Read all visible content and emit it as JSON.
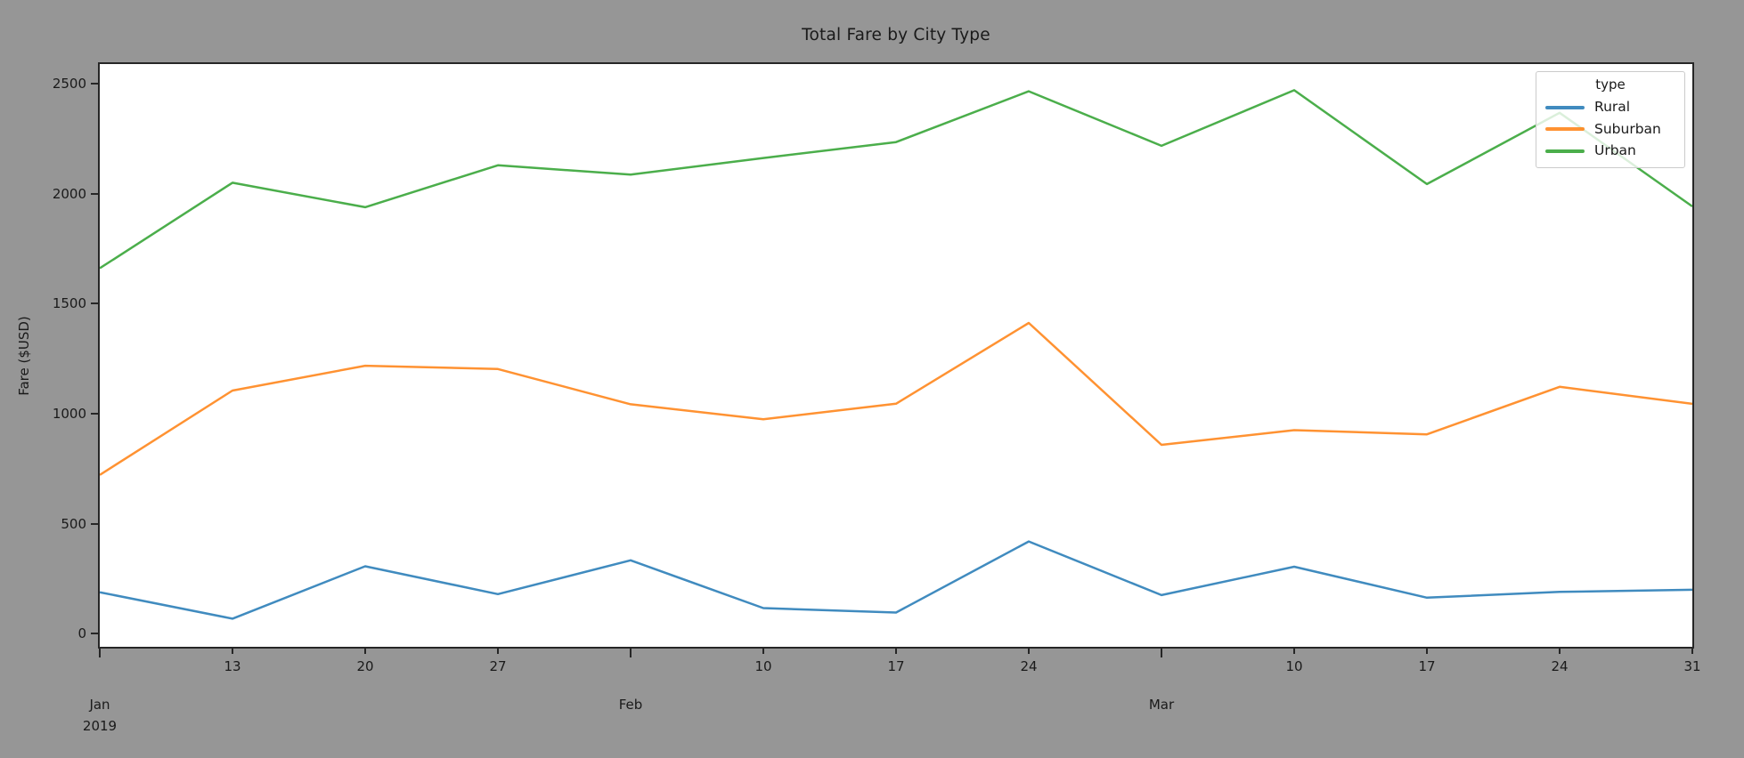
{
  "figure": {
    "background_color": "#969696",
    "axes_background": "#ffffff",
    "spine_color": "#262626",
    "text_color": "#1a1a1a"
  },
  "chart_data": {
    "type": "line",
    "title": "Total Fare by City Type",
    "xlabel": "",
    "ylabel": "Fare ($USD)",
    "x_period": "weekly, 2019-01-06 to 2019-03-31",
    "categories": [
      "Jan 6",
      "Jan 13",
      "Jan 20",
      "Jan 27",
      "Feb 3",
      "Feb 10",
      "Feb 17",
      "Feb 24",
      "Mar 3",
      "Mar 10",
      "Mar 17",
      "Mar 24",
      "Mar 31"
    ],
    "series": [
      {
        "name": "Rural",
        "color": "#1f77b4",
        "values": [
          187.92,
          67.65,
          306.0,
          179.69,
          333.08,
          115.8,
          95.82,
          419.06,
          175.14,
          303.94,
          163.39,
          189.76,
          199.42
        ]
      },
      {
        "name": "Suburban",
        "color": "#ff7f0e",
        "values": [
          721.6,
          1105.13,
          1218.2,
          1203.28,
          1042.79,
          974.34,
          1045.5,
          1412.74,
          858.46,
          925.27,
          906.2,
          1122.2,
          1045.06
        ]
      },
      {
        "name": "Urban",
        "color": "#2ca02c",
        "values": [
          1661.68,
          2050.43,
          1939.02,
          2129.72,
          2086.94,
          2162.64,
          2235.07,
          2466.29,
          2218.2,
          2470.93,
          2044.42,
          2368.37,
          1942.77
        ]
      }
    ],
    "ylim": [
      -60,
      2590
    ],
    "yticks": [
      0,
      500,
      1000,
      1500,
      2000,
      2500
    ],
    "x_ticks": [
      {
        "index": 0,
        "week_label": "",
        "major": true,
        "month_line1": "Jan",
        "month_line2": "2019"
      },
      {
        "index": 1,
        "week_label": "13",
        "major": false
      },
      {
        "index": 2,
        "week_label": "20",
        "major": false
      },
      {
        "index": 3,
        "week_label": "27",
        "major": false
      },
      {
        "index": 4,
        "week_label": "",
        "major": true,
        "month_line1": "Feb"
      },
      {
        "index": 5,
        "week_label": "10",
        "major": false
      },
      {
        "index": 6,
        "week_label": "17",
        "major": false
      },
      {
        "index": 7,
        "week_label": "24",
        "major": false
      },
      {
        "index": 8,
        "week_label": "",
        "major": true,
        "month_line1": "Mar"
      },
      {
        "index": 9,
        "week_label": "10",
        "major": false
      },
      {
        "index": 10,
        "week_label": "17",
        "major": false
      },
      {
        "index": 11,
        "week_label": "24",
        "major": false
      },
      {
        "index": 12,
        "week_label": "31",
        "major": false
      }
    ],
    "legend": {
      "title": "type",
      "position": "upper right",
      "entries": [
        "Rural",
        "Suburban",
        "Urban"
      ]
    },
    "grid": false
  }
}
